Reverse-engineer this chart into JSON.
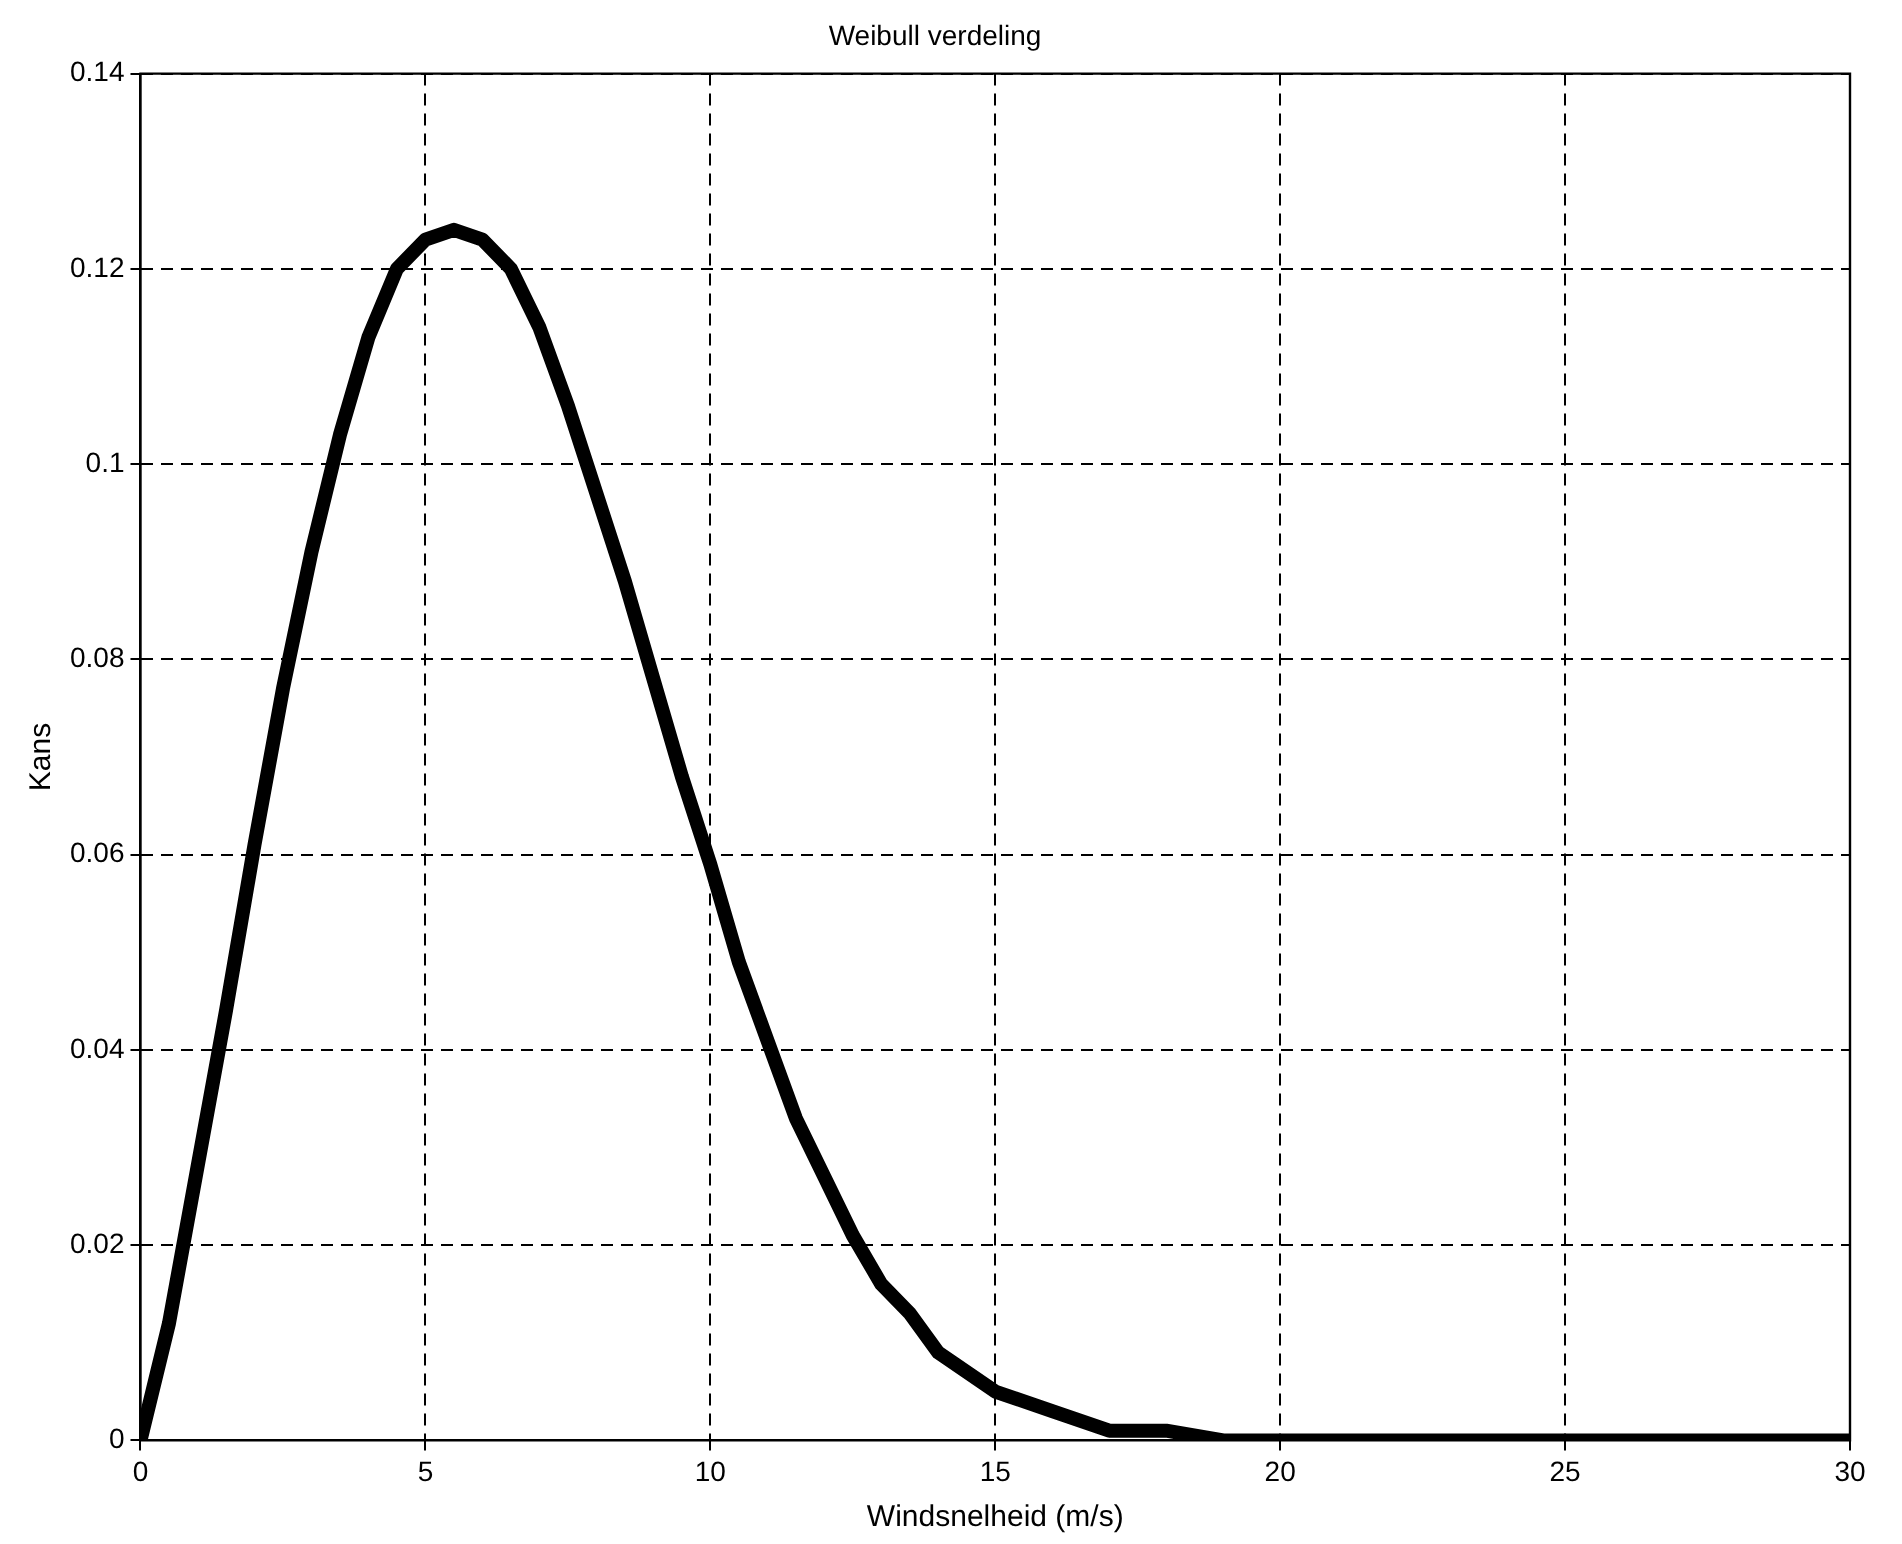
{
  "chart_data": {
    "type": "line",
    "title": "Weibull verdeling",
    "xlabel": "Windsnelheid (m/s)",
    "ylabel": "Kans",
    "x": [
      0,
      0.5,
      1,
      1.5,
      2,
      2.5,
      3,
      3.5,
      4,
      4.5,
      5,
      5.5,
      6,
      6.5,
      7,
      7.5,
      8,
      8.5,
      9,
      9.5,
      10,
      10.5,
      11,
      11.5,
      12,
      12.5,
      13,
      13.5,
      14,
      15,
      16,
      17,
      18,
      19,
      20,
      22,
      24,
      26,
      28,
      30
    ],
    "series": [
      {
        "color": "#000000",
        "values": [
          0,
          0.012,
          0.028,
          0.044,
          0.061,
          0.077,
          0.091,
          0.103,
          0.113,
          0.12,
          0.123,
          0.124,
          0.123,
          0.12,
          0.114,
          0.106,
          0.097,
          0.088,
          0.078,
          0.068,
          0.059,
          0.049,
          0.041,
          0.033,
          0.027,
          0.021,
          0.016,
          0.013,
          0.009,
          0.005,
          0.003,
          0.001,
          0.001,
          0,
          0,
          0,
          0,
          0,
          0,
          0
        ]
      }
    ],
    "xlim": [
      0,
      30
    ],
    "ylim": [
      0,
      0.14
    ],
    "xticks": [
      0,
      5,
      10,
      15,
      20,
      25,
      30
    ],
    "yticks": [
      0,
      0.02,
      0.04,
      0.06,
      0.08,
      0.1,
      0.12,
      0.14
    ],
    "grid": true,
    "legend": false,
    "marker": "none",
    "line_style": "solid"
  }
}
